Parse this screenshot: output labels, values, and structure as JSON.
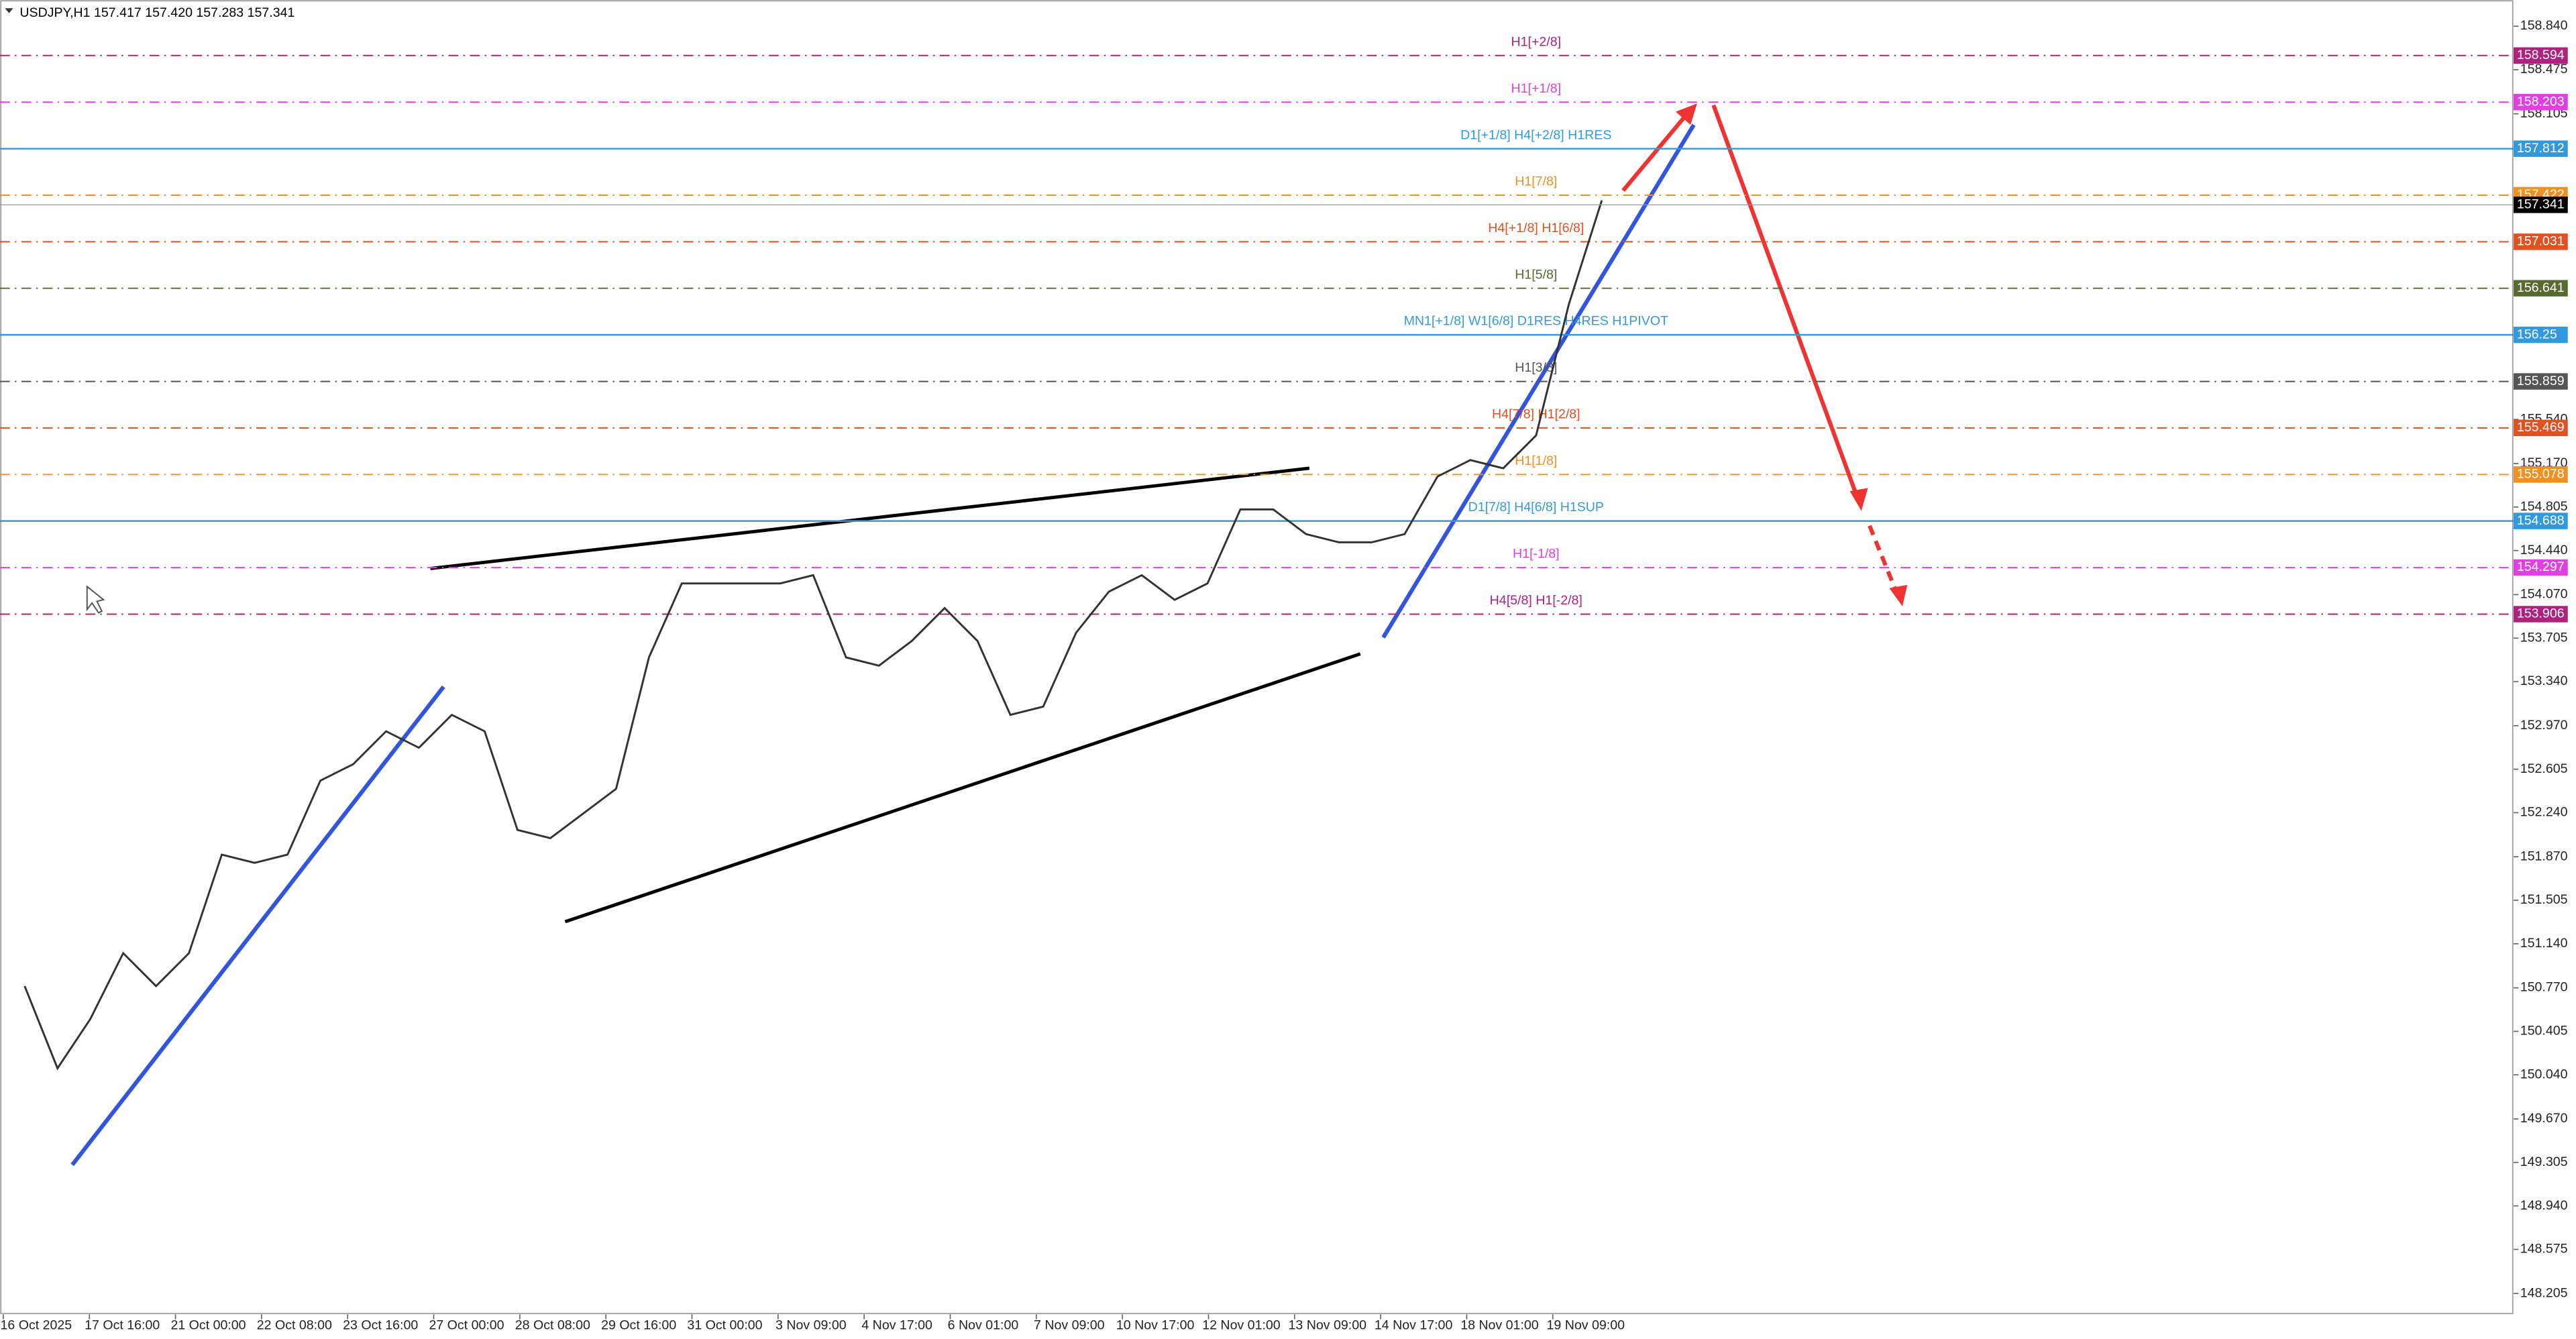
{
  "chart_data": {
    "type": "line",
    "header": "USDJPY,H1  157.417 157.420 157.283 157.341",
    "current_price": 157.341,
    "x_labels": [
      "16 Oct 2025",
      "17 Oct 16:00",
      "21 Oct 00:00",
      "22 Oct 08:00",
      "23 Oct 16:00",
      "27 Oct 00:00",
      "28 Oct 08:00",
      "29 Oct 16:00",
      "31 Oct 00:00",
      "3 Nov 09:00",
      "4 Nov 17:00",
      "6 Nov 01:00",
      "7 Nov 09:00",
      "10 Nov 17:00",
      "12 Nov 01:00",
      "13 Nov 09:00",
      "14 Nov 17:00",
      "18 Nov 01:00",
      "19 Nov 09:00"
    ],
    "series": [
      {
        "name": "USDJPY,H1",
        "color": "#333333",
        "values": [
          150.785,
          150.095,
          150.509,
          151.061,
          150.785,
          151.061,
          151.888,
          151.819,
          151.888,
          152.509,
          152.647,
          152.923,
          152.785,
          153.061,
          152.923,
          152.095,
          152.026,
          152.233,
          152.44,
          153.543,
          154.164,
          154.164,
          154.164,
          154.164,
          154.233,
          153.543,
          153.474,
          153.681,
          153.957,
          153.681,
          153.061,
          153.13,
          153.75,
          154.095,
          154.233,
          154.026,
          154.164,
          154.785,
          154.785,
          154.578,
          154.509,
          154.509,
          154.578,
          155.061,
          155.199,
          155.13,
          155.406,
          156.509,
          157.378
        ]
      }
    ],
    "ylim": [
      148.03,
      159.06
    ],
    "yticks": [
      {
        "value": 158.84,
        "label": "158.840"
      },
      158.475,
      158.105,
      {
        "value": 155.54,
        "label": "155.540"
      },
      {
        "value": 155.17,
        "label": "155.170"
      },
      154.805,
      {
        "value": 154.44,
        "label": "154.440"
      },
      {
        "value": 154.07,
        "label": "154.070"
      },
      153.705,
      {
        "value": 153.34,
        "label": "153.340"
      },
      {
        "value": 152.97,
        "label": "152.970"
      },
      152.605,
      {
        "value": 152.24,
        "label": "152.240"
      },
      {
        "value": 151.87,
        "label": "151.870"
      },
      151.505,
      {
        "value": 151.14,
        "label": "151.140"
      },
      {
        "value": 150.77,
        "label": "150.770"
      },
      150.405,
      {
        "value": 150.04,
        "label": "150.040"
      },
      {
        "value": 149.67,
        "label": "149.670"
      },
      149.305,
      {
        "value": 148.94,
        "label": "148.940"
      },
      148.575,
      148.205
    ],
    "levels": [
      {
        "price": 158.594,
        "label": "H1[+2/8]",
        "color": "#b0207e",
        "dash": true
      },
      {
        "price": 158.203,
        "label": "H1[+1/8]",
        "color": "#e040e0",
        "dash": true
      },
      {
        "price": 157.812,
        "label": "D1[+1/8] H4[+2/8] H1RES",
        "color": "#3399dd",
        "dash": false
      },
      {
        "price": 157.422,
        "label": "H1[7/8]",
        "color": "#f09020",
        "dash": true
      },
      {
        "price": 157.031,
        "label": "H4[+1/8] H1[6/8]",
        "color": "#e05020",
        "dash": true
      },
      {
        "price": 156.641,
        "label": "H1[5/8]",
        "color": "#556b2f",
        "dash": true
      },
      {
        "price": 156.25,
        "label": "MN1[+1/8] W1[6/8] D1RES H4RES H1PIVOT",
        "color": "#3399dd",
        "dash": false
      },
      {
        "price": 155.859,
        "label": "H1[3/8]",
        "color": "#555555",
        "dash": true
      },
      {
        "price": 155.469,
        "label": "H4[7/8] H1[2/8]",
        "color": "#e05020",
        "dash": true
      },
      {
        "price": 155.078,
        "label": "H1[1/8]",
        "color": "#f09020",
        "dash": true
      },
      {
        "price": 154.688,
        "label": "D1[7/8] H4[6/8] H1SUP",
        "color": "#3399dd",
        "dash": false
      },
      {
        "price": 154.297,
        "label": "H1[-1/8]",
        "color": "#e040e0",
        "dash": true
      },
      {
        "price": 153.906,
        "label": "H4[5/8] H1[-2/8]",
        "color": "#b0207e",
        "dash": true
      }
    ]
  }
}
